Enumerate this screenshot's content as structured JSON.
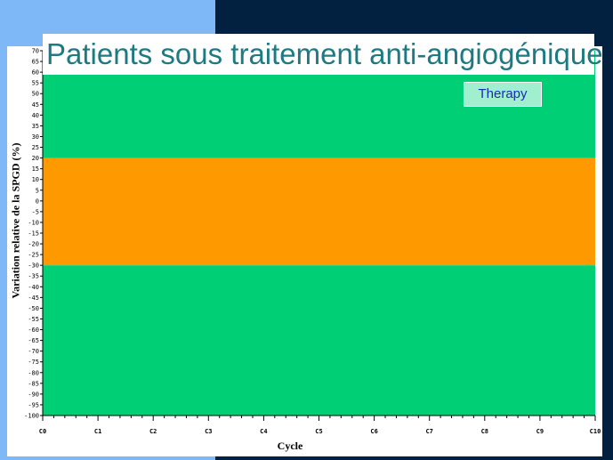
{
  "slide": {
    "title": "Patients sous traitement anti-angiogénique",
    "legend_label": "Therapy",
    "colors": {
      "background_light": "#7fb8f6",
      "background_dark": "#02203f",
      "title_text": "#1d7a82"
    }
  },
  "chart_data": {
    "type": "area",
    "title": "",
    "xlabel": "Cycle",
    "ylabel": "Variation relative de la SPGD (%)",
    "ylim": [
      -100,
      70
    ],
    "y_ticks": [
      70,
      65,
      60,
      55,
      50,
      45,
      40,
      35,
      30,
      25,
      20,
      15,
      10,
      5,
      0,
      -5,
      -10,
      -15,
      -20,
      -25,
      -30,
      -35,
      -40,
      -45,
      -50,
      -55,
      -60,
      -65,
      -70,
      -75,
      -80,
      -85,
      -90,
      -95,
      -100
    ],
    "x_categories": [
      "C0",
      "C1",
      "C2",
      "C3",
      "C4",
      "C5",
      "C6",
      "C7",
      "C8",
      "C9",
      "C10"
    ],
    "bands": [
      {
        "name": "",
        "from": 20,
        "to": 70,
        "color": "#00cf76"
      },
      {
        "name": "",
        "from": -30,
        "to": 20,
        "color": "#ff9900"
      },
      {
        "name": "",
        "from": -100,
        "to": -30,
        "color": "#00cf76"
      }
    ],
    "grid": false,
    "legend_position": "top-right"
  }
}
